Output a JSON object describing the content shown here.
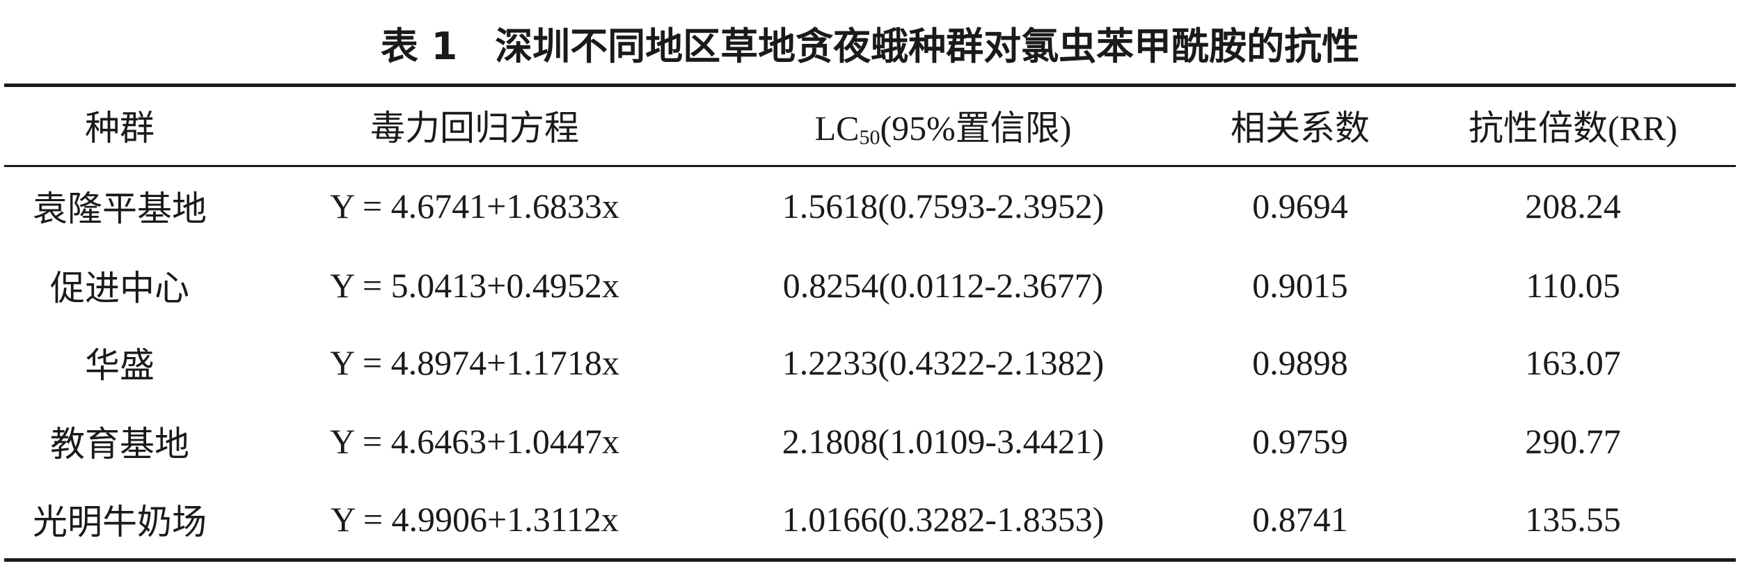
{
  "title": {
    "label": "表 1",
    "text": "深圳不同地区草地贪夜蛾种群对氯虫苯甲酰胺的抗性"
  },
  "table": {
    "header": [
      "种群",
      "毒力回归方程",
      {
        "main": "LC",
        "sub": "50",
        "rest": "(95%置信限)"
      },
      "相关系数",
      "抗性倍数(RR)"
    ],
    "rows": [
      [
        "袁隆平基地",
        "Y = 4.6741+1.6833x",
        "1.5618(0.7593-2.3952)",
        "0.9694",
        "208.24"
      ],
      [
        "促进中心",
        "Y = 5.0413+0.4952x",
        "0.8254(0.0112-2.3677)",
        "0.9015",
        "110.05"
      ],
      [
        "华盛",
        "Y = 4.8974+1.1718x",
        "1.2233(0.4322-2.1382)",
        "0.9898",
        "163.07"
      ],
      [
        "教育基地",
        "Y = 4.6463+1.0447x",
        "2.1808(1.0109-3.4421)",
        "0.9759",
        "290.77"
      ],
      [
        "光明牛奶场",
        "Y = 4.9906+1.3112x",
        "1.0166(0.3282-1.8353)",
        "0.8741",
        "135.55"
      ]
    ]
  }
}
